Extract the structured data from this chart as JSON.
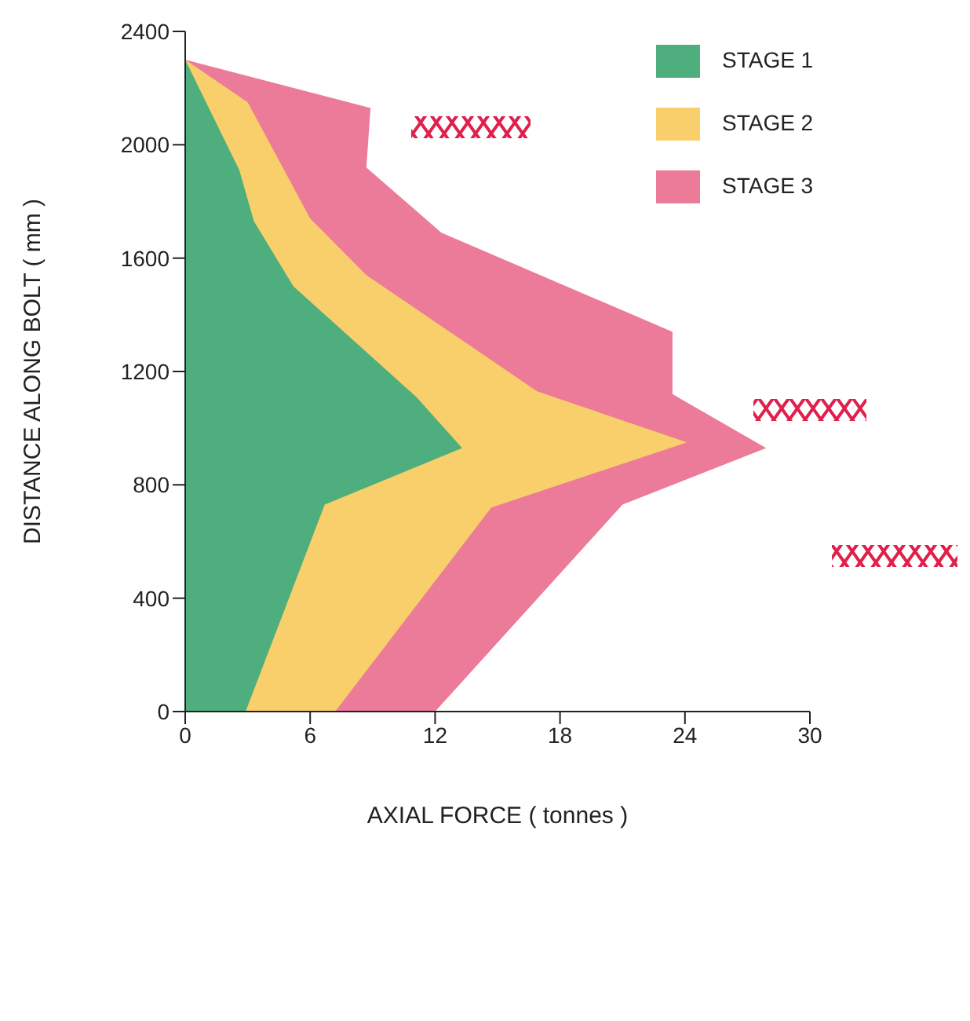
{
  "chart_data": {
    "type": "area",
    "orientation": "horizontal",
    "xlabel": "AXIAL FORCE ( tonnes )",
    "ylabel": "DISTANCE ALONG BOLT ( mm )",
    "xlim": [
      0,
      30
    ],
    "xticks": [
      0,
      6,
      12,
      18,
      24,
      30
    ],
    "ylim": [
      0,
      2400
    ],
    "yticks": [
      0,
      400,
      800,
      1200,
      1600,
      2000,
      2400
    ],
    "grid": false,
    "legend": "top right",
    "marker": "none",
    "series": [
      {
        "name": "STAGE 3",
        "color": "#ec7b9a",
        "x": [
          0,
          730,
          930,
          1120,
          1340,
          1690,
          1920,
          2130,
          2300
        ],
        "values": [
          12.0,
          21.0,
          27.9,
          23.4,
          23.4,
          12.3,
          8.7,
          8.9,
          0
        ]
      },
      {
        "name": "STAGE 2",
        "color": "#f8cf6a",
        "x": [
          0,
          720,
          950,
          1130,
          1540,
          1740,
          2150,
          2300
        ],
        "values": [
          7.2,
          14.7,
          24.1,
          16.9,
          8.7,
          6.0,
          3.0,
          0
        ]
      },
      {
        "name": "STAGE 1",
        "color": "#4fae7e",
        "x": [
          0,
          730,
          930,
          1110,
          1500,
          1730,
          1910,
          2300
        ],
        "values": [
          2.9,
          6.7,
          13.3,
          11.1,
          5.2,
          3.3,
          2.6,
          0
        ]
      }
    ]
  }
}
